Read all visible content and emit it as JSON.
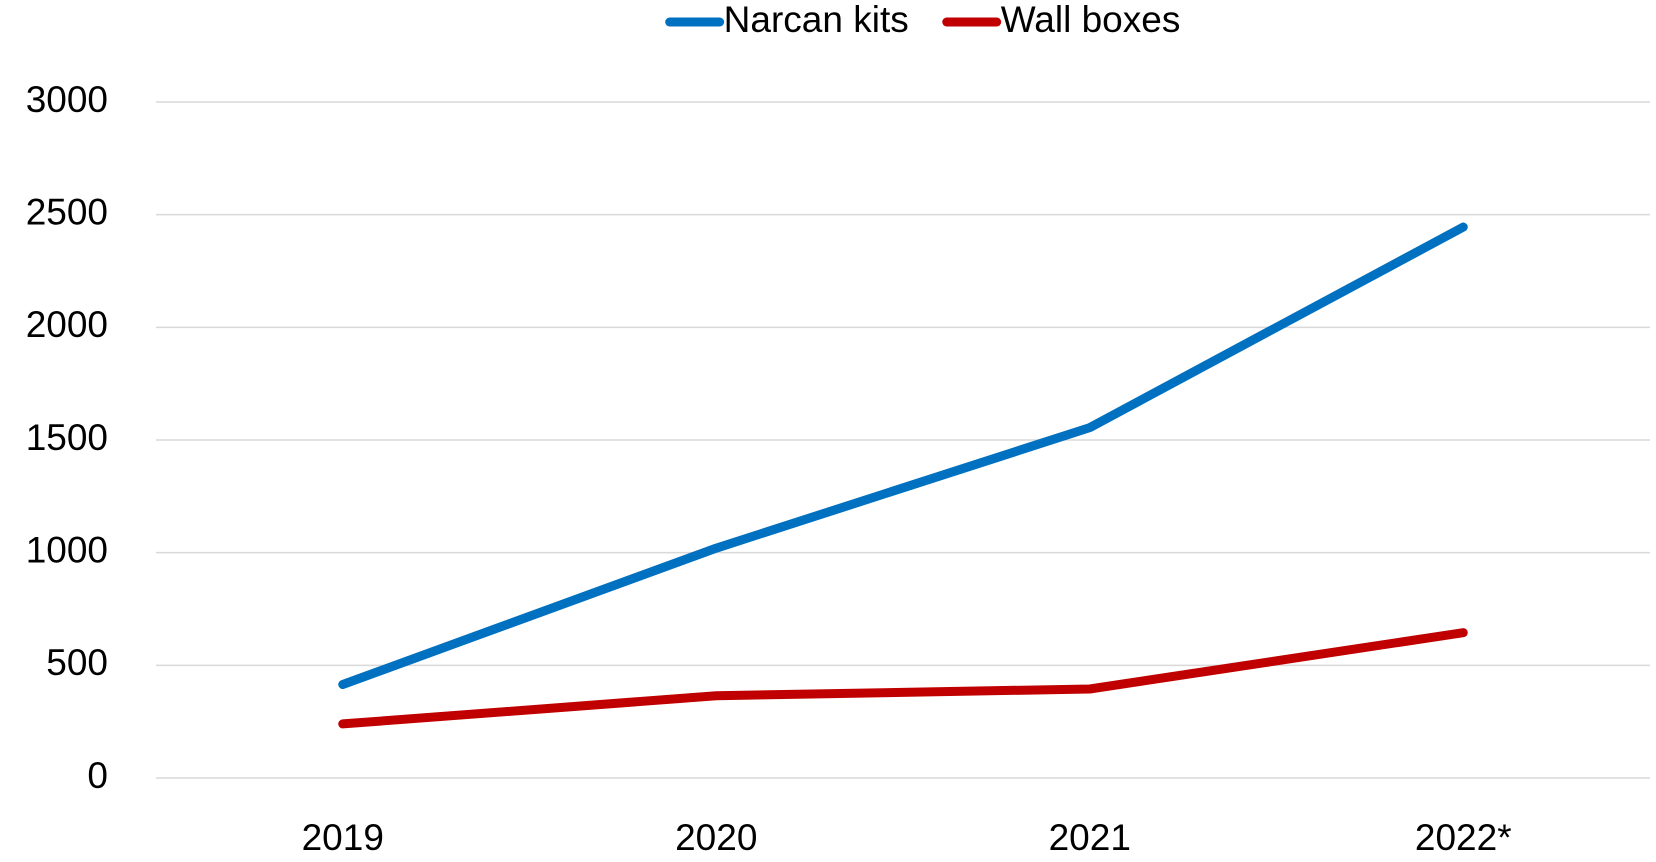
{
  "chart_data": {
    "type": "line",
    "categories": [
      "2019",
      "2020",
      "2021",
      "2022*"
    ],
    "series": [
      {
        "name": "Narcan kits",
        "color": "#0070c0",
        "values": [
          415,
          1020,
          1555,
          2445
        ]
      },
      {
        "name": "Wall boxes",
        "color": "#c00000",
        "values": [
          240,
          365,
          395,
          645
        ]
      }
    ],
    "ylim": [
      0,
      3000
    ],
    "yticks": [
      0,
      500,
      1000,
      1500,
      2000,
      2500,
      3000
    ],
    "grid": true,
    "legend": "top"
  }
}
